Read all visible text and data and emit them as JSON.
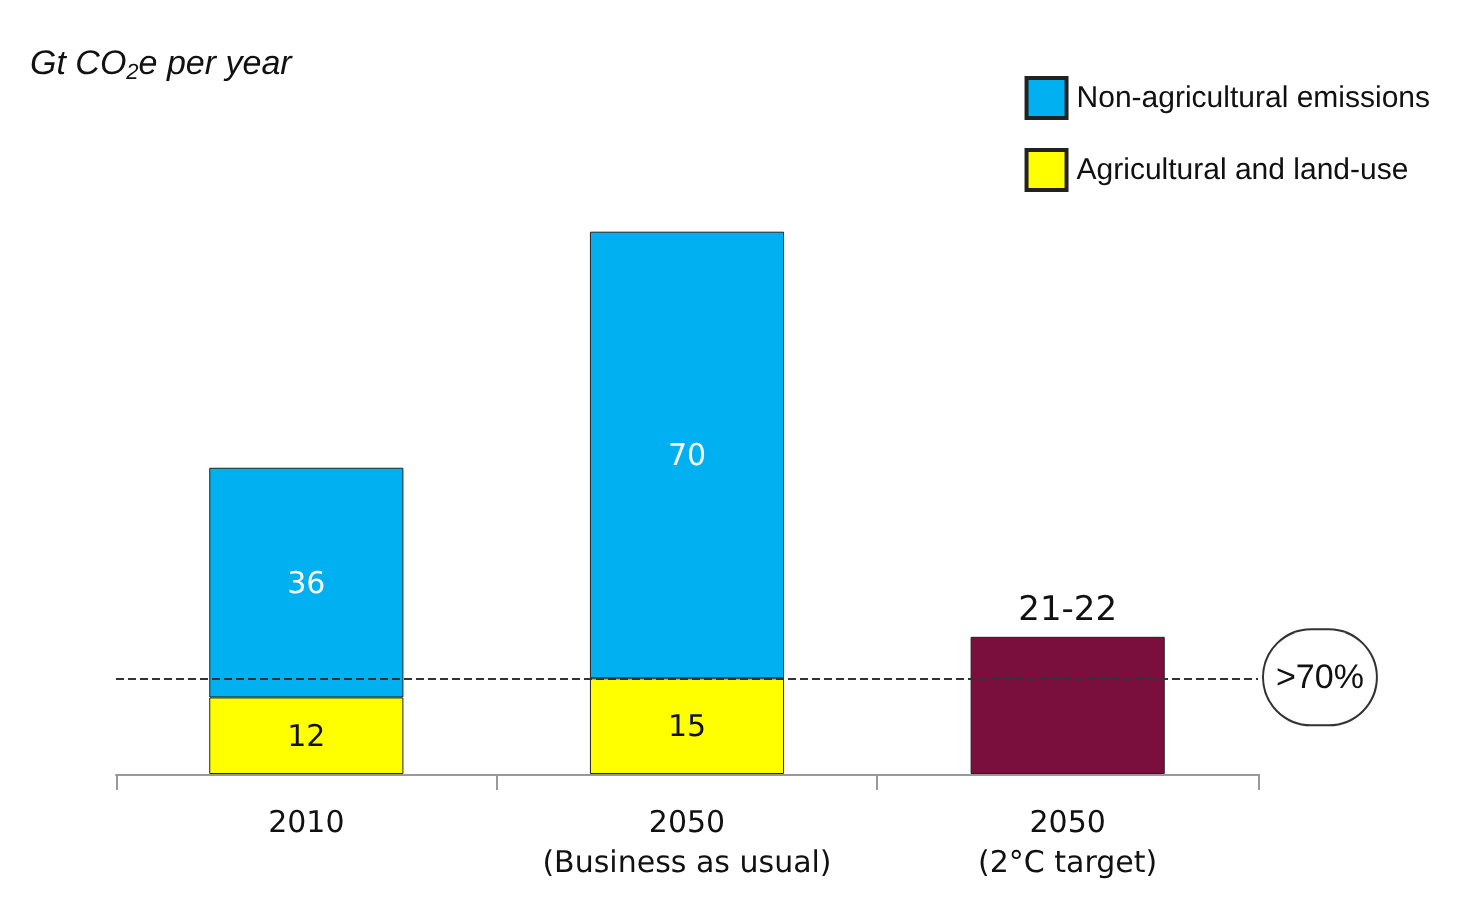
{
  "chart_data": {
    "type": "bar",
    "stacked": true,
    "ylabel": "Gt CO$_{2}$e per year",
    "categories": [
      "2010",
      "2050\n(Business as usual)",
      "2050\n(2°C target)"
    ],
    "series": [
      {
        "name": "Agricultural and land-use",
        "color": "#ffff00",
        "values": [
          12,
          15,
          null
        ],
        "value_labels": [
          "12",
          "15",
          null
        ]
      },
      {
        "name": "Non-agricultural emissions",
        "color": "#00b0f0",
        "values": [
          36,
          70,
          null
        ],
        "value_labels": [
          "36",
          "70",
          null
        ]
      },
      {
        "color": "#7a0f3e",
        "values": [
          null,
          null,
          21.5
        ],
        "value_labels": [
          null,
          null,
          "21-22"
        ]
      }
    ],
    "ref_lines": [
      {
        "axis": "y",
        "value": 15,
        "line_style": "dashed",
        "color": "#333333"
      }
    ],
    "annotations": [
      ">70%"
    ],
    "legend": "top right",
    "grid": false,
    "tick_labels": "x"
  }
}
